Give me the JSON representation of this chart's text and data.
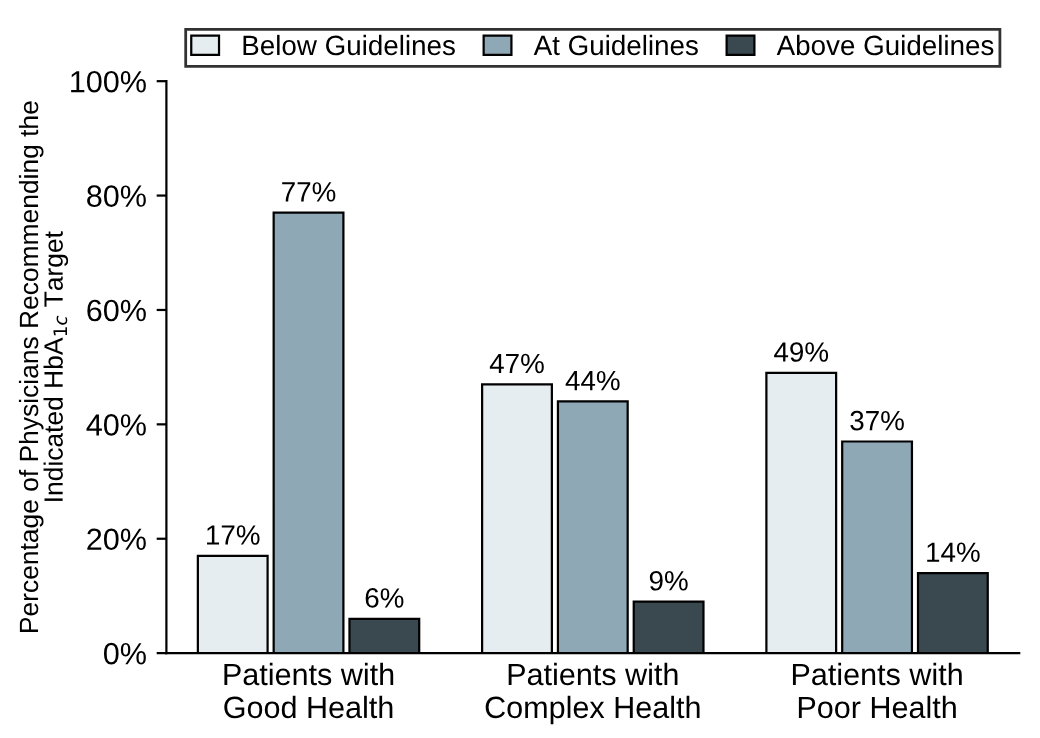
{
  "chart_data": {
    "type": "bar",
    "ylabel": "Percentage of Physicians Recommending the\nIndicated HbA$_{1c}$ Target",
    "categories": [
      "Patients with\nGood Health",
      "Patients with\nComplex Health",
      "Patients with\nPoor Health"
    ],
    "series": [
      {
        "name": "Below Guidelines",
        "color": "#e6edf1",
        "values": [
          17,
          47,
          49
        ],
        "value_labels": [
          "17%",
          "47%",
          "49%"
        ]
      },
      {
        "name": "At Guidelines",
        "color": "#8fa8b6",
        "values": [
          77,
          44,
          37
        ],
        "value_labels": [
          "77%",
          "44%",
          "37%"
        ]
      },
      {
        "name": "Above Guidelines",
        "color": "#3a4950",
        "values": [
          6,
          9,
          14
        ],
        "value_labels": [
          "6%",
          "9%",
          "14%"
        ]
      }
    ],
    "ylim": [
      0,
      100
    ],
    "yticks": [
      {
        "value": 0,
        "label": "0%"
      },
      {
        "value": 20,
        "label": "20%"
      },
      {
        "value": 40,
        "label": "40%"
      },
      {
        "value": 60,
        "label": "60%"
      },
      {
        "value": 80,
        "label": "80%"
      },
      {
        "value": 100,
        "label": "100%"
      }
    ],
    "grid": false,
    "legend": "top"
  }
}
